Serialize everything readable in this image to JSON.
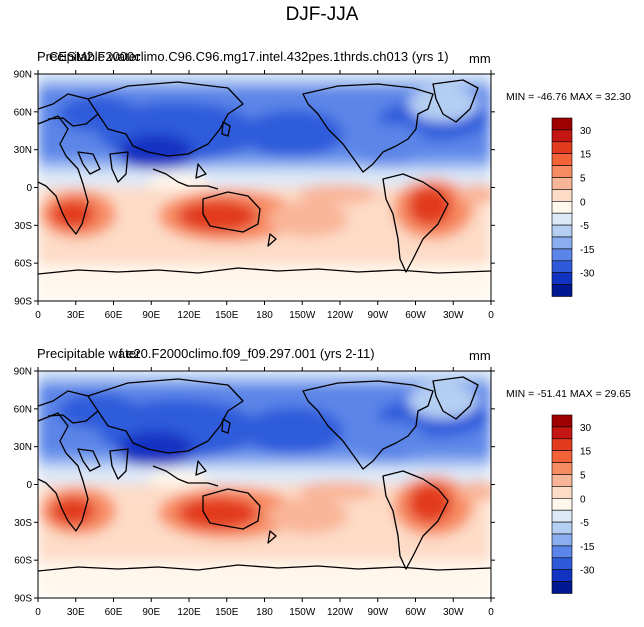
{
  "figure": {
    "title": "DJF-JJA"
  },
  "panels": [
    {
      "case_overlay": "CESM2.F2000climo.C96.C96.mg17.intel.432pes.1thrds.ch013 (yrs 1)",
      "variable_label": "Precipitable water",
      "units": "mm",
      "stats": "MIN = -46.76 MAX =  32.30"
    },
    {
      "case_overlay": "f.e20.F2000climo.f09_f09.297.001 (yrs 2-11)",
      "variable_label": "Precipitable water",
      "units": "mm",
      "stats": "MIN = -51.41 MAX =  29.65"
    }
  ],
  "axes": {
    "lat_labels": [
      "90N",
      "60N",
      "30N",
      "0",
      "30S",
      "60S",
      "90S"
    ],
    "lon_labels": [
      "0",
      "30E",
      "60E",
      "90E",
      "120E",
      "150E",
      "180",
      "150W",
      "120W",
      "90W",
      "60W",
      "30W",
      "0"
    ]
  },
  "colorbar": {
    "labels": [
      "30",
      "15",
      "5",
      "0",
      "-5",
      "-15",
      "-30"
    ],
    "colors": [
      "#9e0000",
      "#c41612",
      "#e23b1e",
      "#f26438",
      "#f78c63",
      "#f9b598",
      "#fddcc7",
      "#fff7ec",
      "#dde9f8",
      "#b5cff3",
      "#8aaef0",
      "#5b85e8",
      "#2f5bdb",
      "#1232c2",
      "#001891"
    ]
  },
  "chart_data": {
    "type": "map",
    "title": "DJF-JJA",
    "variable": "Precipitable water",
    "units": "mm",
    "contour_levels": [
      -35,
      -30,
      -25,
      -20,
      -15,
      -10,
      -5,
      -2,
      2,
      5,
      10,
      15,
      20,
      25,
      30,
      35
    ],
    "colorbar_tick_values": [
      30,
      15,
      5,
      0,
      -5,
      -15,
      -30
    ],
    "latitude_ticks_deg": [
      90,
      60,
      30,
      0,
      -30,
      -60,
      -90
    ],
    "longitude_ticks_deg": [
      0,
      30,
      60,
      90,
      120,
      150,
      180,
      210,
      240,
      270,
      300,
      330,
      360
    ],
    "panels": [
      {
        "case": "CESM2.F2000climo.C96.C96.mg17.intel.432pes.1thrds.ch013 (yrs 1)",
        "min": -46.76,
        "max": 32.3
      },
      {
        "case": "f.e20.F2000climo.f09_f09.297.001 (yrs 2-11)",
        "min": -51.41,
        "max": 29.65
      }
    ]
  }
}
